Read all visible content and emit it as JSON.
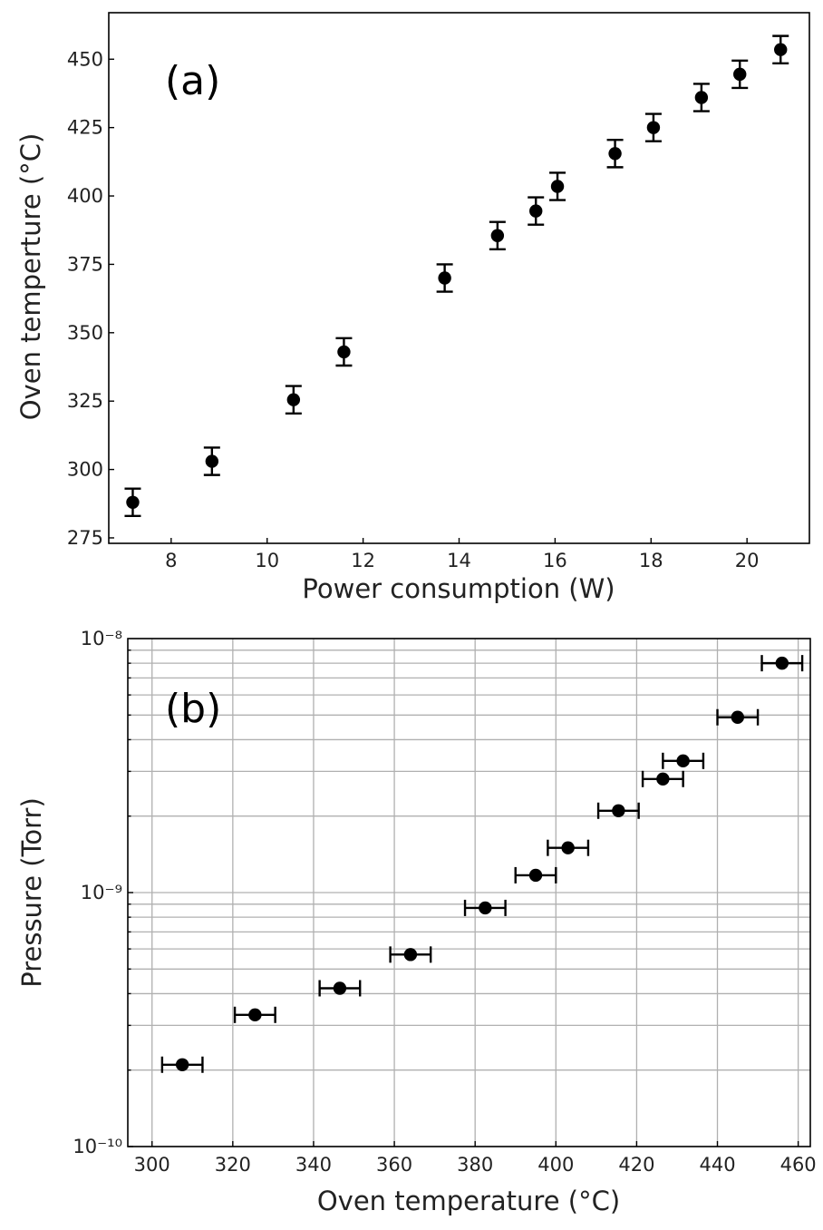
{
  "chart_data": [
    {
      "panel": "(a)",
      "type": "scatter",
      "title": "",
      "xlabel": "Power consumption (W)",
      "ylabel": "Oven temperture (°C)",
      "xlim": [
        6.7,
        21.3
      ],
      "ylim": [
        273,
        467
      ],
      "xticks": [
        8,
        10,
        12,
        14,
        16,
        18,
        20
      ],
      "yticks": [
        275,
        300,
        325,
        350,
        375,
        400,
        425,
        450
      ],
      "grid": false,
      "series": [
        {
          "name": "oven temperature",
          "x": [
            7.2,
            8.85,
            10.55,
            11.6,
            13.7,
            14.8,
            15.6,
            16.05,
            17.25,
            18.05,
            19.05,
            19.85,
            20.7
          ],
          "y": [
            288,
            303,
            325.5,
            343,
            370,
            385.5,
            394.5,
            403.5,
            415.5,
            425,
            436,
            444.5,
            453.5
          ],
          "yerr": 5
        }
      ]
    },
    {
      "panel": "(b)",
      "type": "scatter",
      "title": "",
      "xlabel": "Oven temperature (°C)",
      "ylabel": "Pressure (Torr)",
      "xscale": "linear",
      "yscale": "log",
      "xlim": [
        294,
        463
      ],
      "ylim": [
        1e-10,
        1e-08
      ],
      "xticks": [
        300,
        320,
        340,
        360,
        380,
        400,
        420,
        440,
        460
      ],
      "yticks": [
        "10⁻¹⁰",
        "10⁻⁹",
        "10⁻⁸"
      ],
      "grid": true,
      "series": [
        {
          "name": "pressure",
          "x": [
            307.5,
            325.5,
            346.5,
            364,
            382.5,
            395,
            403,
            415.5,
            426.5,
            431.5,
            445,
            456
          ],
          "y": [
            2.1e-10,
            3.3e-10,
            4.2e-10,
            5.7e-10,
            8.7e-10,
            1.17e-09,
            1.5e-09,
            2.1e-09,
            2.8e-09,
            3.3e-09,
            4.9e-09,
            8e-09
          ],
          "xerr": 5
        }
      ]
    }
  ]
}
